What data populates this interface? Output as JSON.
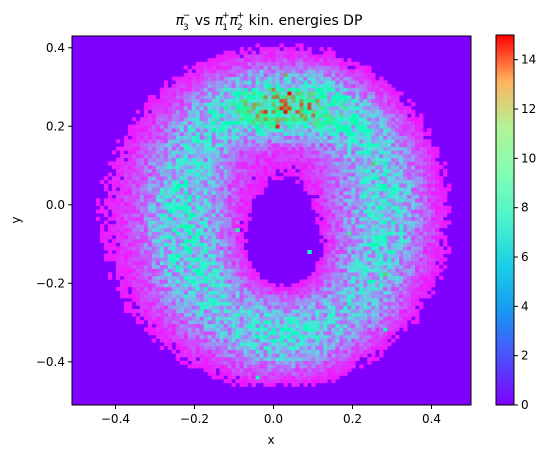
{
  "chart_data": {
    "type": "heatmap",
    "title": {
      "pi3_base": "π",
      "pi3_sub": "3",
      "pi3_sup": "−",
      "vs": " vs ",
      "pi1_base": "π",
      "pi1_sub": "1",
      "pi1_sup": "+",
      "pi2_base": "π",
      "pi2_sub": "2",
      "pi2_sup": "+",
      "rest": " kin. energies DP"
    },
    "xlabel": "x",
    "ylabel": "y",
    "xlim": [
      -0.51,
      0.5
    ],
    "ylim": [
      -0.51,
      0.43
    ],
    "xticks": [
      -0.4,
      -0.2,
      0.0,
      0.2,
      0.4
    ],
    "xtick_labels": [
      "−0.4",
      "−0.2",
      "0.0",
      "0.2",
      "0.4"
    ],
    "yticks": [
      -0.4,
      -0.2,
      0.0,
      0.2,
      0.4
    ],
    "ytick_labels": [
      "−0.4",
      "−0.2",
      "0.0",
      "0.2",
      "0.4"
    ],
    "colorbar": {
      "min": 0,
      "max": 15,
      "ticks": [
        0,
        2,
        4,
        6,
        8,
        10,
        12,
        14
      ],
      "tick_labels": [
        "0",
        "2",
        "4",
        "6",
        "8",
        "10",
        "12",
        "14"
      ],
      "colormap": "rainbow"
    },
    "bins": {
      "nx": 100,
      "ny": 100
    },
    "density_model": {
      "description_of_structure": "Dalitz-plot density: dense upper band, hollow centre, lobes down both sides to a bottom tip",
      "peak_counts_approx": 15,
      "background_counts": 0
    }
  },
  "colors": {
    "background_empty_bin": "#8000ff",
    "axes_frame": "#000000",
    "page_background": "#ffffff"
  }
}
